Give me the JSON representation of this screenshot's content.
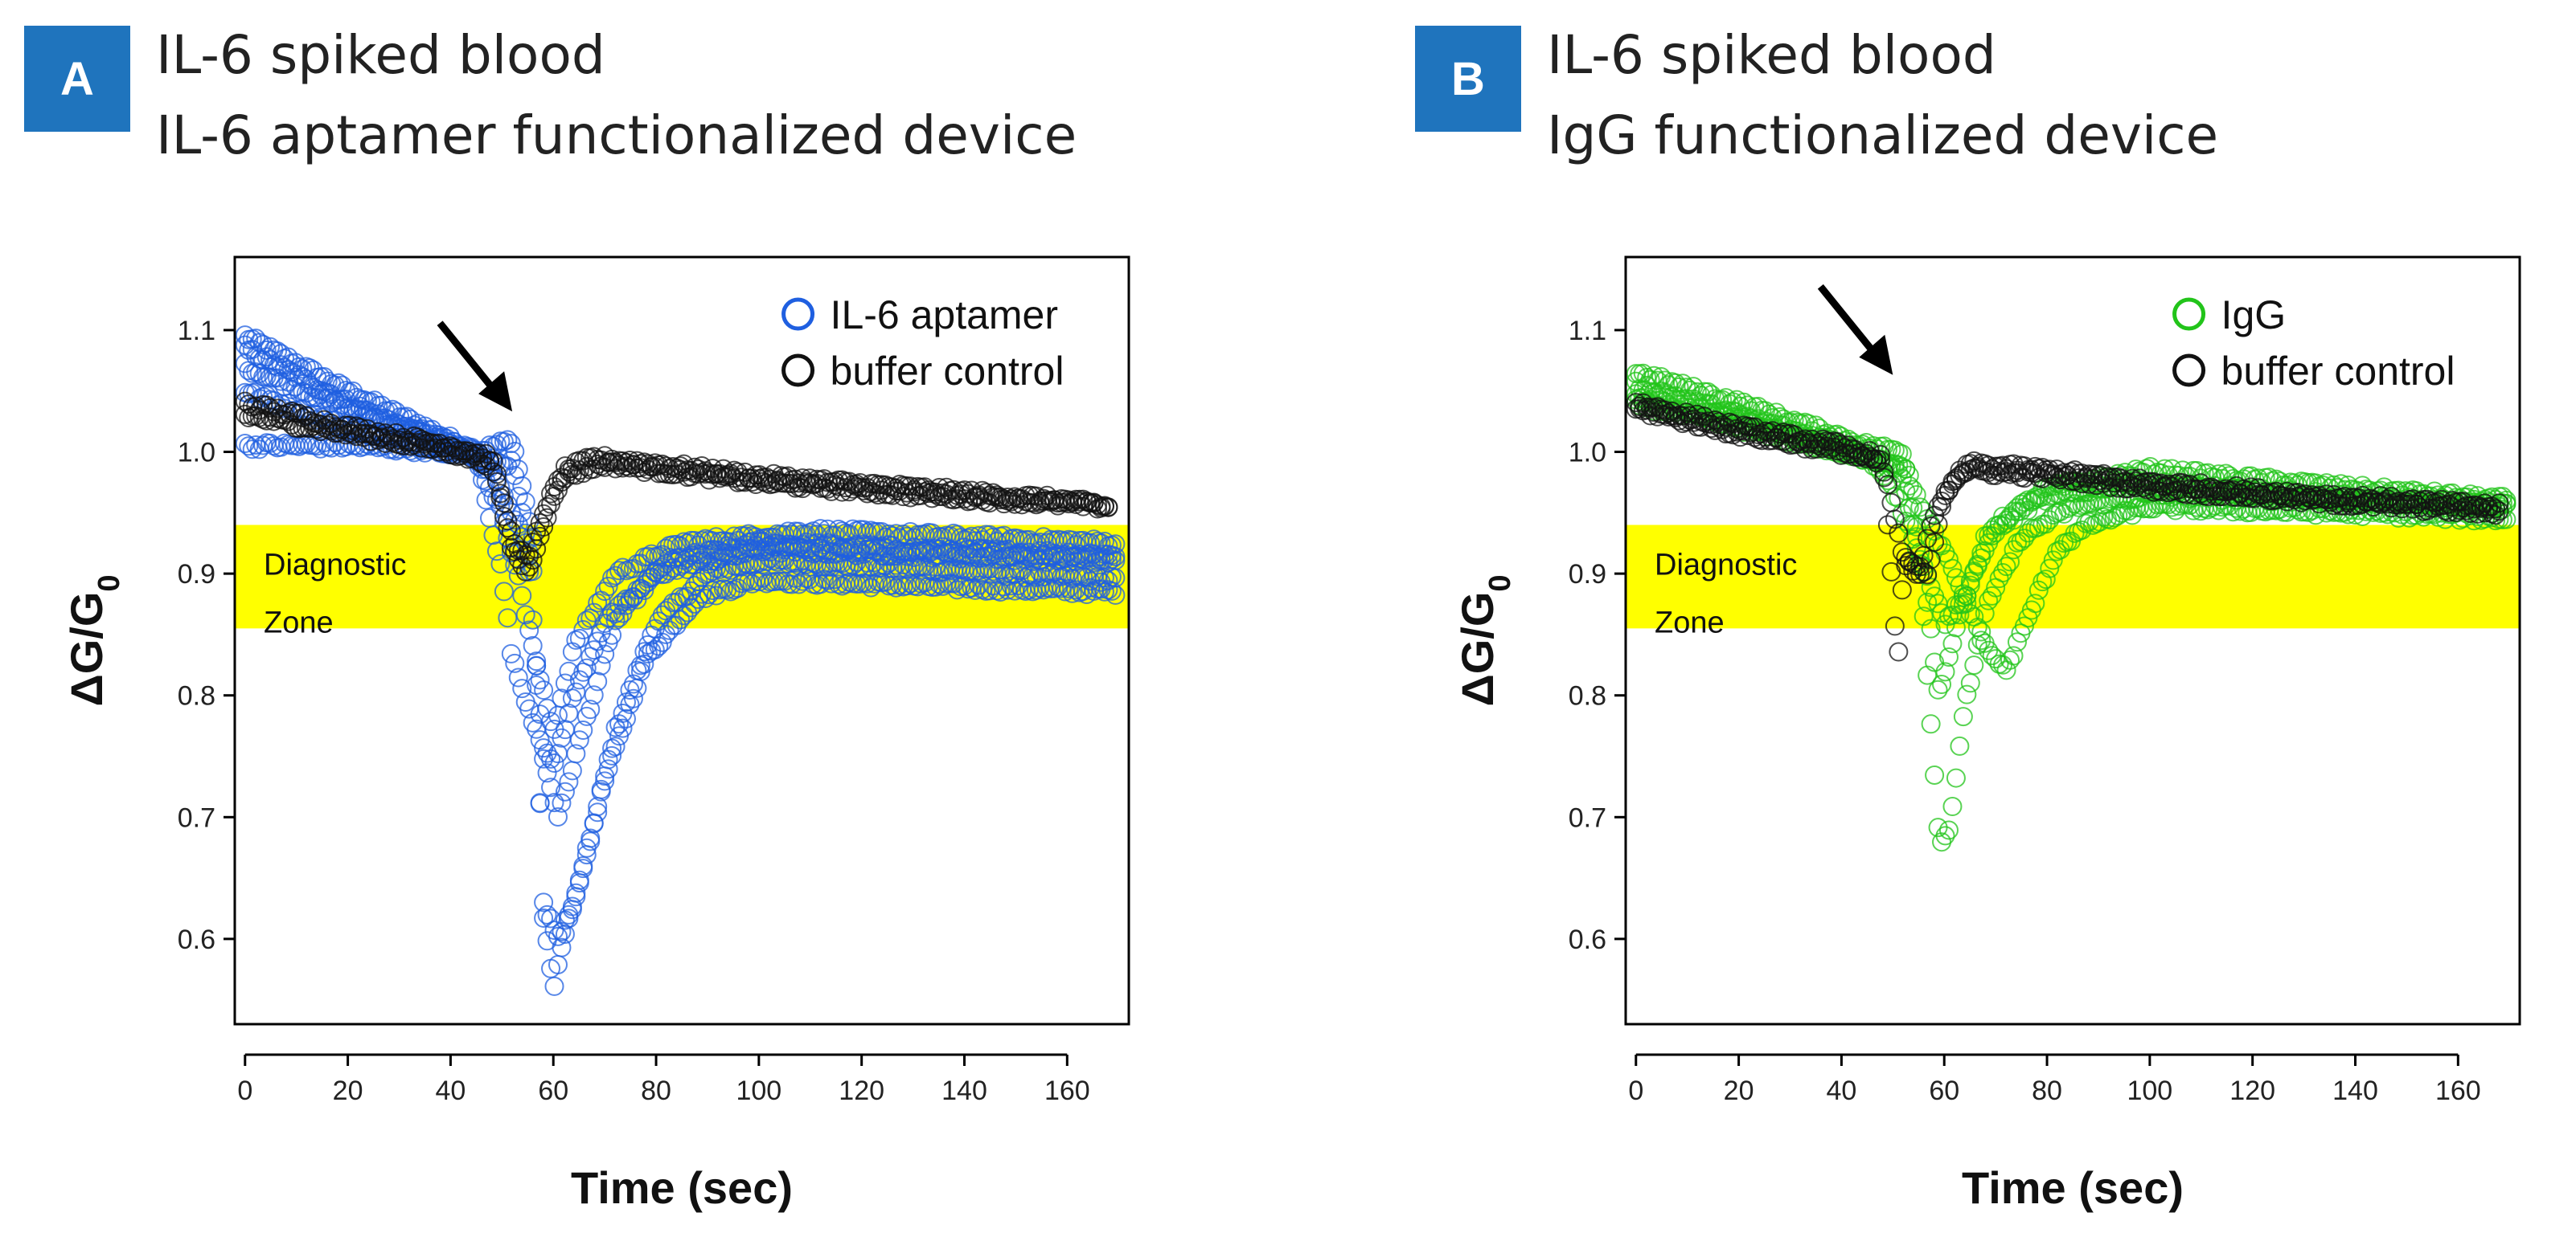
{
  "panels": [
    {
      "badge": "A",
      "title_line1": "IL-6 spiked blood",
      "title_line2": "IL-6 aptamer functionalized device",
      "zone_label1": "Diagnostic",
      "zone_label2": "Zone"
    },
    {
      "badge": "B",
      "title_line1": "IL-6 spiked blood",
      "title_line2": "IgG functionalized device",
      "zone_label1": "Diagnostic",
      "zone_label2": "Zone"
    }
  ],
  "colors": {
    "badge": "#1f74bd",
    "zone": "#ffff00",
    "blue": "#1f5fe0",
    "green": "#22c41a",
    "black": "#111111"
  },
  "chart_data": [
    {
      "type": "scatter",
      "title": "IL-6 aptamer functionalized device",
      "xlabel": "Time (sec)",
      "ylabel": "ΔG/G",
      "ylabel_sub": "0",
      "xlim": [
        -2,
        172
      ],
      "ylim": [
        0.53,
        1.16
      ],
      "xticks": [
        0,
        20,
        40,
        60,
        80,
        100,
        120,
        140,
        160
      ],
      "yticks": [
        0.6,
        0.7,
        0.8,
        0.9,
        1.0,
        1.1
      ],
      "ytick_labels": [
        "0.6",
        "0.7",
        "0.8",
        "0.9",
        "1.0",
        "1.1"
      ],
      "diagnostic_zone": [
        0.855,
        0.94
      ],
      "arrow_at": {
        "x": 52,
        "y": 1.02
      },
      "legend": [
        {
          "name": "IL-6 aptamer",
          "color": "#1f5fe0"
        },
        {
          "name": "buffer control",
          "color": "#111111"
        }
      ],
      "series": [
        {
          "name": "IL-6 aptamer",
          "color": "#1f5fe0",
          "curves": [
            [
              [
                0,
                1.095
              ],
              [
                20,
                1.05
              ],
              [
                45,
                1.0
              ],
              [
                52,
                1.01
              ],
              [
                56,
                0.93
              ],
              [
                58,
                0.62
              ],
              [
                60,
                0.56
              ],
              [
                62,
                0.6
              ],
              [
                66,
                0.66
              ],
              [
                72,
                0.77
              ],
              [
                80,
                0.86
              ],
              [
                90,
                0.9
              ],
              [
                100,
                0.91
              ],
              [
                130,
                0.905
              ],
              [
                170,
                0.895
              ]
            ],
            [
              [
                0,
                1.085
              ],
              [
                20,
                1.04
              ],
              [
                45,
                0.995
              ],
              [
                52,
                0.99
              ],
              [
                56,
                0.9
              ],
              [
                58,
                0.63
              ],
              [
                61,
                0.6
              ],
              [
                64,
                0.63
              ],
              [
                70,
                0.73
              ],
              [
                78,
                0.83
              ],
              [
                88,
                0.88
              ],
              [
                100,
                0.895
              ],
              [
                130,
                0.89
              ],
              [
                170,
                0.885
              ]
            ],
            [
              [
                0,
                1.07
              ],
              [
                20,
                1.035
              ],
              [
                45,
                1.0
              ],
              [
                50,
                0.97
              ],
              [
                55,
                0.92
              ],
              [
                58,
                0.75
              ],
              [
                61,
                0.7
              ],
              [
                65,
                0.76
              ],
              [
                72,
                0.86
              ],
              [
                82,
                0.91
              ],
              [
                100,
                0.925
              ],
              [
                130,
                0.92
              ],
              [
                170,
                0.915
              ]
            ],
            [
              [
                0,
                1.05
              ],
              [
                20,
                1.02
              ],
              [
                45,
                0.995
              ],
              [
                50,
                0.95
              ],
              [
                53,
                0.9
              ],
              [
                57,
                0.82
              ],
              [
                60,
                0.77
              ],
              [
                64,
                0.84
              ],
              [
                72,
                0.9
              ],
              [
                85,
                0.925
              ],
              [
                110,
                0.935
              ],
              [
                140,
                0.93
              ],
              [
                170,
                0.925
              ]
            ],
            [
              [
                0,
                1.005
              ],
              [
                20,
                1.005
              ],
              [
                45,
                1.0
              ],
              [
                50,
                0.9
              ],
              [
                52,
                0.83
              ],
              [
                56,
                0.78
              ],
              [
                60,
                0.74
              ],
              [
                64,
                0.8
              ],
              [
                70,
                0.86
              ],
              [
                80,
                0.9
              ],
              [
                100,
                0.92
              ],
              [
                140,
                0.915
              ],
              [
                170,
                0.91
              ]
            ]
          ]
        },
        {
          "name": "buffer control",
          "color": "#111111",
          "curves": [
            [
              [
                0,
                1.04
              ],
              [
                20,
                1.02
              ],
              [
                40,
                1.005
              ],
              [
                48,
                0.995
              ],
              [
                52,
                0.93
              ],
              [
                55,
                0.91
              ],
              [
                58,
                0.95
              ],
              [
                62,
                0.985
              ],
              [
                68,
                0.995
              ],
              [
                80,
                0.99
              ],
              [
                100,
                0.98
              ],
              [
                130,
                0.97
              ],
              [
                160,
                0.96
              ],
              [
                168,
                0.955
              ]
            ],
            [
              [
                0,
                1.03
              ],
              [
                20,
                1.015
              ],
              [
                40,
                1.0
              ],
              [
                48,
                0.99
              ],
              [
                52,
                0.92
              ],
              [
                55,
                0.9
              ],
              [
                58,
                0.94
              ],
              [
                62,
                0.98
              ],
              [
                70,
                0.99
              ],
              [
                100,
                0.975
              ],
              [
                130,
                0.965
              ],
              [
                168,
                0.955
              ]
            ]
          ]
        }
      ]
    },
    {
      "type": "scatter",
      "title": "IgG functionalized device",
      "xlabel": "Time (sec)",
      "ylabel": "ΔG/G",
      "ylabel_sub": "0",
      "xlim": [
        -2,
        172
      ],
      "ylim": [
        0.53,
        1.16
      ],
      "xticks": [
        0,
        20,
        40,
        60,
        80,
        100,
        120,
        140,
        160
      ],
      "yticks": [
        0.6,
        0.7,
        0.8,
        0.9,
        1.0,
        1.1
      ],
      "ytick_labels": [
        "0.6",
        "0.7",
        "0.8",
        "0.9",
        "1.0",
        "1.1"
      ],
      "diagnostic_zone": [
        0.855,
        0.94
      ],
      "arrow_at": {
        "x": 50,
        "y": 1.05
      },
      "legend": [
        {
          "name": "IgG",
          "color": "#22c41a"
        },
        {
          "name": "buffer control",
          "color": "#111111"
        }
      ],
      "series": [
        {
          "name": "IgG",
          "color": "#22c41a",
          "curves": [
            [
              [
                0,
                1.065
              ],
              [
                20,
                1.04
              ],
              [
                45,
                1.005
              ],
              [
                52,
                1.0
              ],
              [
                55,
                0.93
              ],
              [
                57,
                0.8
              ],
              [
                59,
                0.68
              ],
              [
                61,
                0.69
              ],
              [
                64,
                0.79
              ],
              [
                68,
                0.87
              ],
              [
                75,
                0.93
              ],
              [
                85,
                0.955
              ],
              [
                100,
                0.965
              ],
              [
                140,
                0.96
              ],
              [
                170,
                0.955
              ]
            ],
            [
              [
                0,
                1.055
              ],
              [
                20,
                1.03
              ],
              [
                45,
                1.0
              ],
              [
                52,
                0.98
              ],
              [
                56,
                0.9
              ],
              [
                59,
                0.8
              ],
              [
                62,
                0.85
              ],
              [
                68,
                0.93
              ],
              [
                78,
                0.96
              ],
              [
                95,
                0.975
              ],
              [
                130,
                0.965
              ],
              [
                170,
                0.955
              ]
            ],
            [
              [
                0,
                1.045
              ],
              [
                20,
                1.025
              ],
              [
                45,
                0.995
              ],
              [
                50,
                0.97
              ],
              [
                55,
                0.92
              ],
              [
                60,
                0.86
              ],
              [
                64,
                0.88
              ],
              [
                70,
                0.94
              ],
              [
                80,
                0.97
              ],
              [
                100,
                0.985
              ],
              [
                140,
                0.97
              ],
              [
                170,
                0.96
              ]
            ],
            [
              [
                0,
                1.04
              ],
              [
                20,
                1.02
              ],
              [
                45,
                0.995
              ],
              [
                52,
                0.99
              ],
              [
                56,
                0.95
              ],
              [
                62,
                0.9
              ],
              [
                68,
                0.84
              ],
              [
                72,
                0.82
              ],
              [
                76,
                0.86
              ],
              [
                82,
                0.92
              ],
              [
                88,
                0.94
              ],
              [
                100,
                0.955
              ],
              [
                140,
                0.95
              ],
              [
                170,
                0.945
              ]
            ]
          ]
        },
        {
          "name": "buffer control",
          "color": "#111111",
          "curves": [
            [
              [
                0,
                1.04
              ],
              [
                20,
                1.02
              ],
              [
                40,
                1.005
              ],
              [
                48,
                0.995
              ],
              [
                51,
                0.825
              ],
              [
                52,
                0.905
              ],
              [
                54,
                0.91
              ],
              [
                57,
                0.9
              ],
              [
                60,
                0.965
              ],
              [
                65,
                0.99
              ],
              [
                80,
                0.985
              ],
              [
                100,
                0.975
              ],
              [
                130,
                0.965
              ],
              [
                168,
                0.955
              ]
            ],
            [
              [
                0,
                1.035
              ],
              [
                20,
                1.015
              ],
              [
                40,
                1.0
              ],
              [
                48,
                0.99
              ],
              [
                52,
                0.915
              ],
              [
                55,
                0.895
              ],
              [
                58,
                0.95
              ],
              [
                63,
                0.985
              ],
              [
                80,
                0.98
              ],
              [
                100,
                0.97
              ],
              [
                130,
                0.96
              ],
              [
                168,
                0.95
              ]
            ]
          ]
        }
      ]
    }
  ]
}
